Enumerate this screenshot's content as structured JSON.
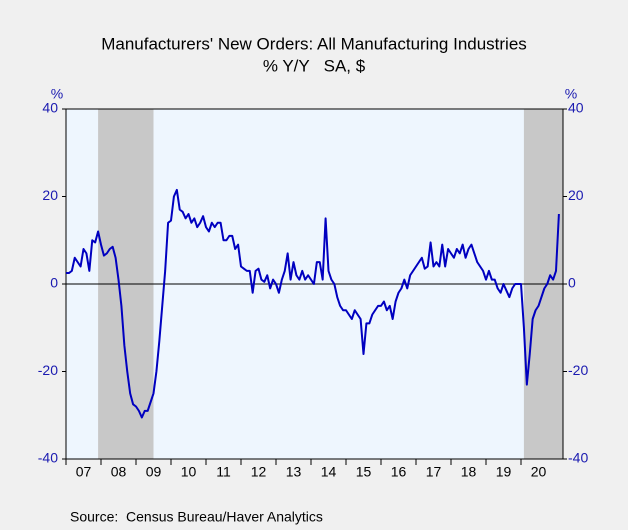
{
  "chart_data": {
    "type": "line",
    "title": "Manufacturers' New Orders: All Manufacturing Industries",
    "subtitle": "% Y/Y   SA, $",
    "y_label": "%",
    "y2_label": "%",
    "source": "Source:  Census Bureau/Haver Analytics",
    "xlim": [
      2007,
      2021.2
    ],
    "xticks": [
      {
        "value": 2007.5,
        "label": "07"
      },
      {
        "value": 2008.5,
        "label": "08"
      },
      {
        "value": 2009.5,
        "label": "09"
      },
      {
        "value": 2010.5,
        "label": "10"
      },
      {
        "value": 2011.5,
        "label": "11"
      },
      {
        "value": 2012.5,
        "label": "12"
      },
      {
        "value": 2013.5,
        "label": "13"
      },
      {
        "value": 2014.5,
        "label": "14"
      },
      {
        "value": 2015.5,
        "label": "15"
      },
      {
        "value": 2016.5,
        "label": "16"
      },
      {
        "value": 2017.5,
        "label": "17"
      },
      {
        "value": 2018.5,
        "label": "18"
      },
      {
        "value": 2019.5,
        "label": "19"
      },
      {
        "value": 2020.5,
        "label": "20"
      }
    ],
    "ylim": [
      -40,
      40
    ],
    "yticks": [
      40,
      20,
      0,
      -20,
      -40
    ],
    "y2lim": [
      -40,
      40
    ],
    "y2ticks": [
      40,
      20,
      0,
      -20,
      -40
    ],
    "zero_line": true,
    "shaded_regions": [
      [
        2007.917,
        2009.5
      ],
      [
        2020.083,
        2021.2
      ]
    ],
    "shade_color": "#c8c8c8",
    "plot_background": "#eef6fe",
    "x": [
      2007,
      2007.083,
      2007.167,
      2007.25,
      2007.333,
      2007.417,
      2007.5,
      2007.583,
      2007.667,
      2007.75,
      2007.833,
      2007.917,
      2008,
      2008.083,
      2008.167,
      2008.25,
      2008.333,
      2008.417,
      2008.5,
      2008.583,
      2008.667,
      2008.75,
      2008.833,
      2008.917,
      2009,
      2009.083,
      2009.167,
      2009.25,
      2009.333,
      2009.417,
      2009.5,
      2009.583,
      2009.667,
      2009.75,
      2009.833,
      2009.917,
      2010,
      2010.083,
      2010.167,
      2010.25,
      2010.333,
      2010.417,
      2010.5,
      2010.583,
      2010.667,
      2010.75,
      2010.833,
      2010.917,
      2011,
      2011.083,
      2011.167,
      2011.25,
      2011.333,
      2011.417,
      2011.5,
      2011.583,
      2011.667,
      2011.75,
      2011.833,
      2011.917,
      2012,
      2012.083,
      2012.167,
      2012.25,
      2012.333,
      2012.417,
      2012.5,
      2012.583,
      2012.667,
      2012.75,
      2012.833,
      2012.917,
      2013,
      2013.083,
      2013.167,
      2013.25,
      2013.333,
      2013.417,
      2013.5,
      2013.583,
      2013.667,
      2013.75,
      2013.833,
      2013.917,
      2014,
      2014.083,
      2014.167,
      2014.25,
      2014.333,
      2014.417,
      2014.5,
      2014.583,
      2014.667,
      2014.75,
      2014.833,
      2014.917,
      2015,
      2015.083,
      2015.167,
      2015.25,
      2015.333,
      2015.417,
      2015.5,
      2015.583,
      2015.667,
      2015.75,
      2015.833,
      2015.917,
      2016,
      2016.083,
      2016.167,
      2016.25,
      2016.333,
      2016.417,
      2016.5,
      2016.583,
      2016.667,
      2016.75,
      2016.833,
      2016.917,
      2017,
      2017.083,
      2017.167,
      2017.25,
      2017.333,
      2017.417,
      2017.5,
      2017.583,
      2017.667,
      2017.75,
      2017.833,
      2017.917,
      2018,
      2018.083,
      2018.167,
      2018.25,
      2018.333,
      2018.417,
      2018.5,
      2018.583,
      2018.667,
      2018.75,
      2018.833,
      2018.917,
      2019,
      2019.083,
      2019.167,
      2019.25,
      2019.333,
      2019.417,
      2019.5,
      2019.583,
      2019.667,
      2019.75,
      2019.833,
      2019.917,
      2020,
      2020.083,
      2020.167,
      2020.25,
      2020.333,
      2020.417,
      2020.5,
      2020.583,
      2020.667,
      2020.75,
      2020.833,
      2020.917,
      2021,
      2021.083
    ],
    "series": [
      {
        "color": "#0000c0",
        "values": [
          2.5,
          2.5,
          3,
          6,
          5,
          4,
          8,
          7,
          3,
          10,
          9.5,
          12,
          9,
          6.5,
          7,
          8,
          8.5,
          6,
          1,
          -5,
          -14,
          -20,
          -25,
          -27.5,
          -28,
          -29,
          -30.5,
          -29,
          -29,
          -27,
          -25,
          -20,
          -13,
          -5,
          3,
          14,
          14.5,
          20,
          21.5,
          17,
          16.5,
          15,
          16,
          14,
          15,
          13,
          14,
          15.5,
          13,
          12,
          14,
          13,
          14,
          14,
          10,
          10,
          11,
          11,
          8,
          9,
          4,
          3.5,
          3,
          3,
          -2,
          3,
          3.5,
          1,
          0.5,
          2,
          -1,
          1,
          0,
          -2,
          1,
          3,
          7,
          1,
          5,
          2,
          1,
          3,
          1,
          2,
          1,
          0,
          5,
          5,
          1,
          15,
          3,
          1,
          0,
          -3,
          -5,
          -6,
          -6,
          -7,
          -8,
          -6,
          -7,
          -8,
          -16,
          -9,
          -9,
          -7,
          -6,
          -5,
          -5,
          -4,
          -6,
          -5,
          -8,
          -4,
          -2,
          -1,
          1,
          -1,
          2,
          3,
          4,
          5,
          6,
          3.5,
          4,
          9.5,
          4,
          5,
          4,
          9,
          4,
          8,
          7,
          6,
          8,
          7,
          9,
          6,
          8,
          9,
          7,
          5,
          4,
          3,
          1,
          3,
          1,
          1,
          -1,
          -2,
          0,
          -1.5,
          -3,
          -1,
          0,
          0,
          0,
          -10,
          -23,
          -16,
          -8,
          -6,
          -5,
          -3,
          -1,
          0,
          2,
          1,
          3,
          16
        ]
      }
    ]
  }
}
